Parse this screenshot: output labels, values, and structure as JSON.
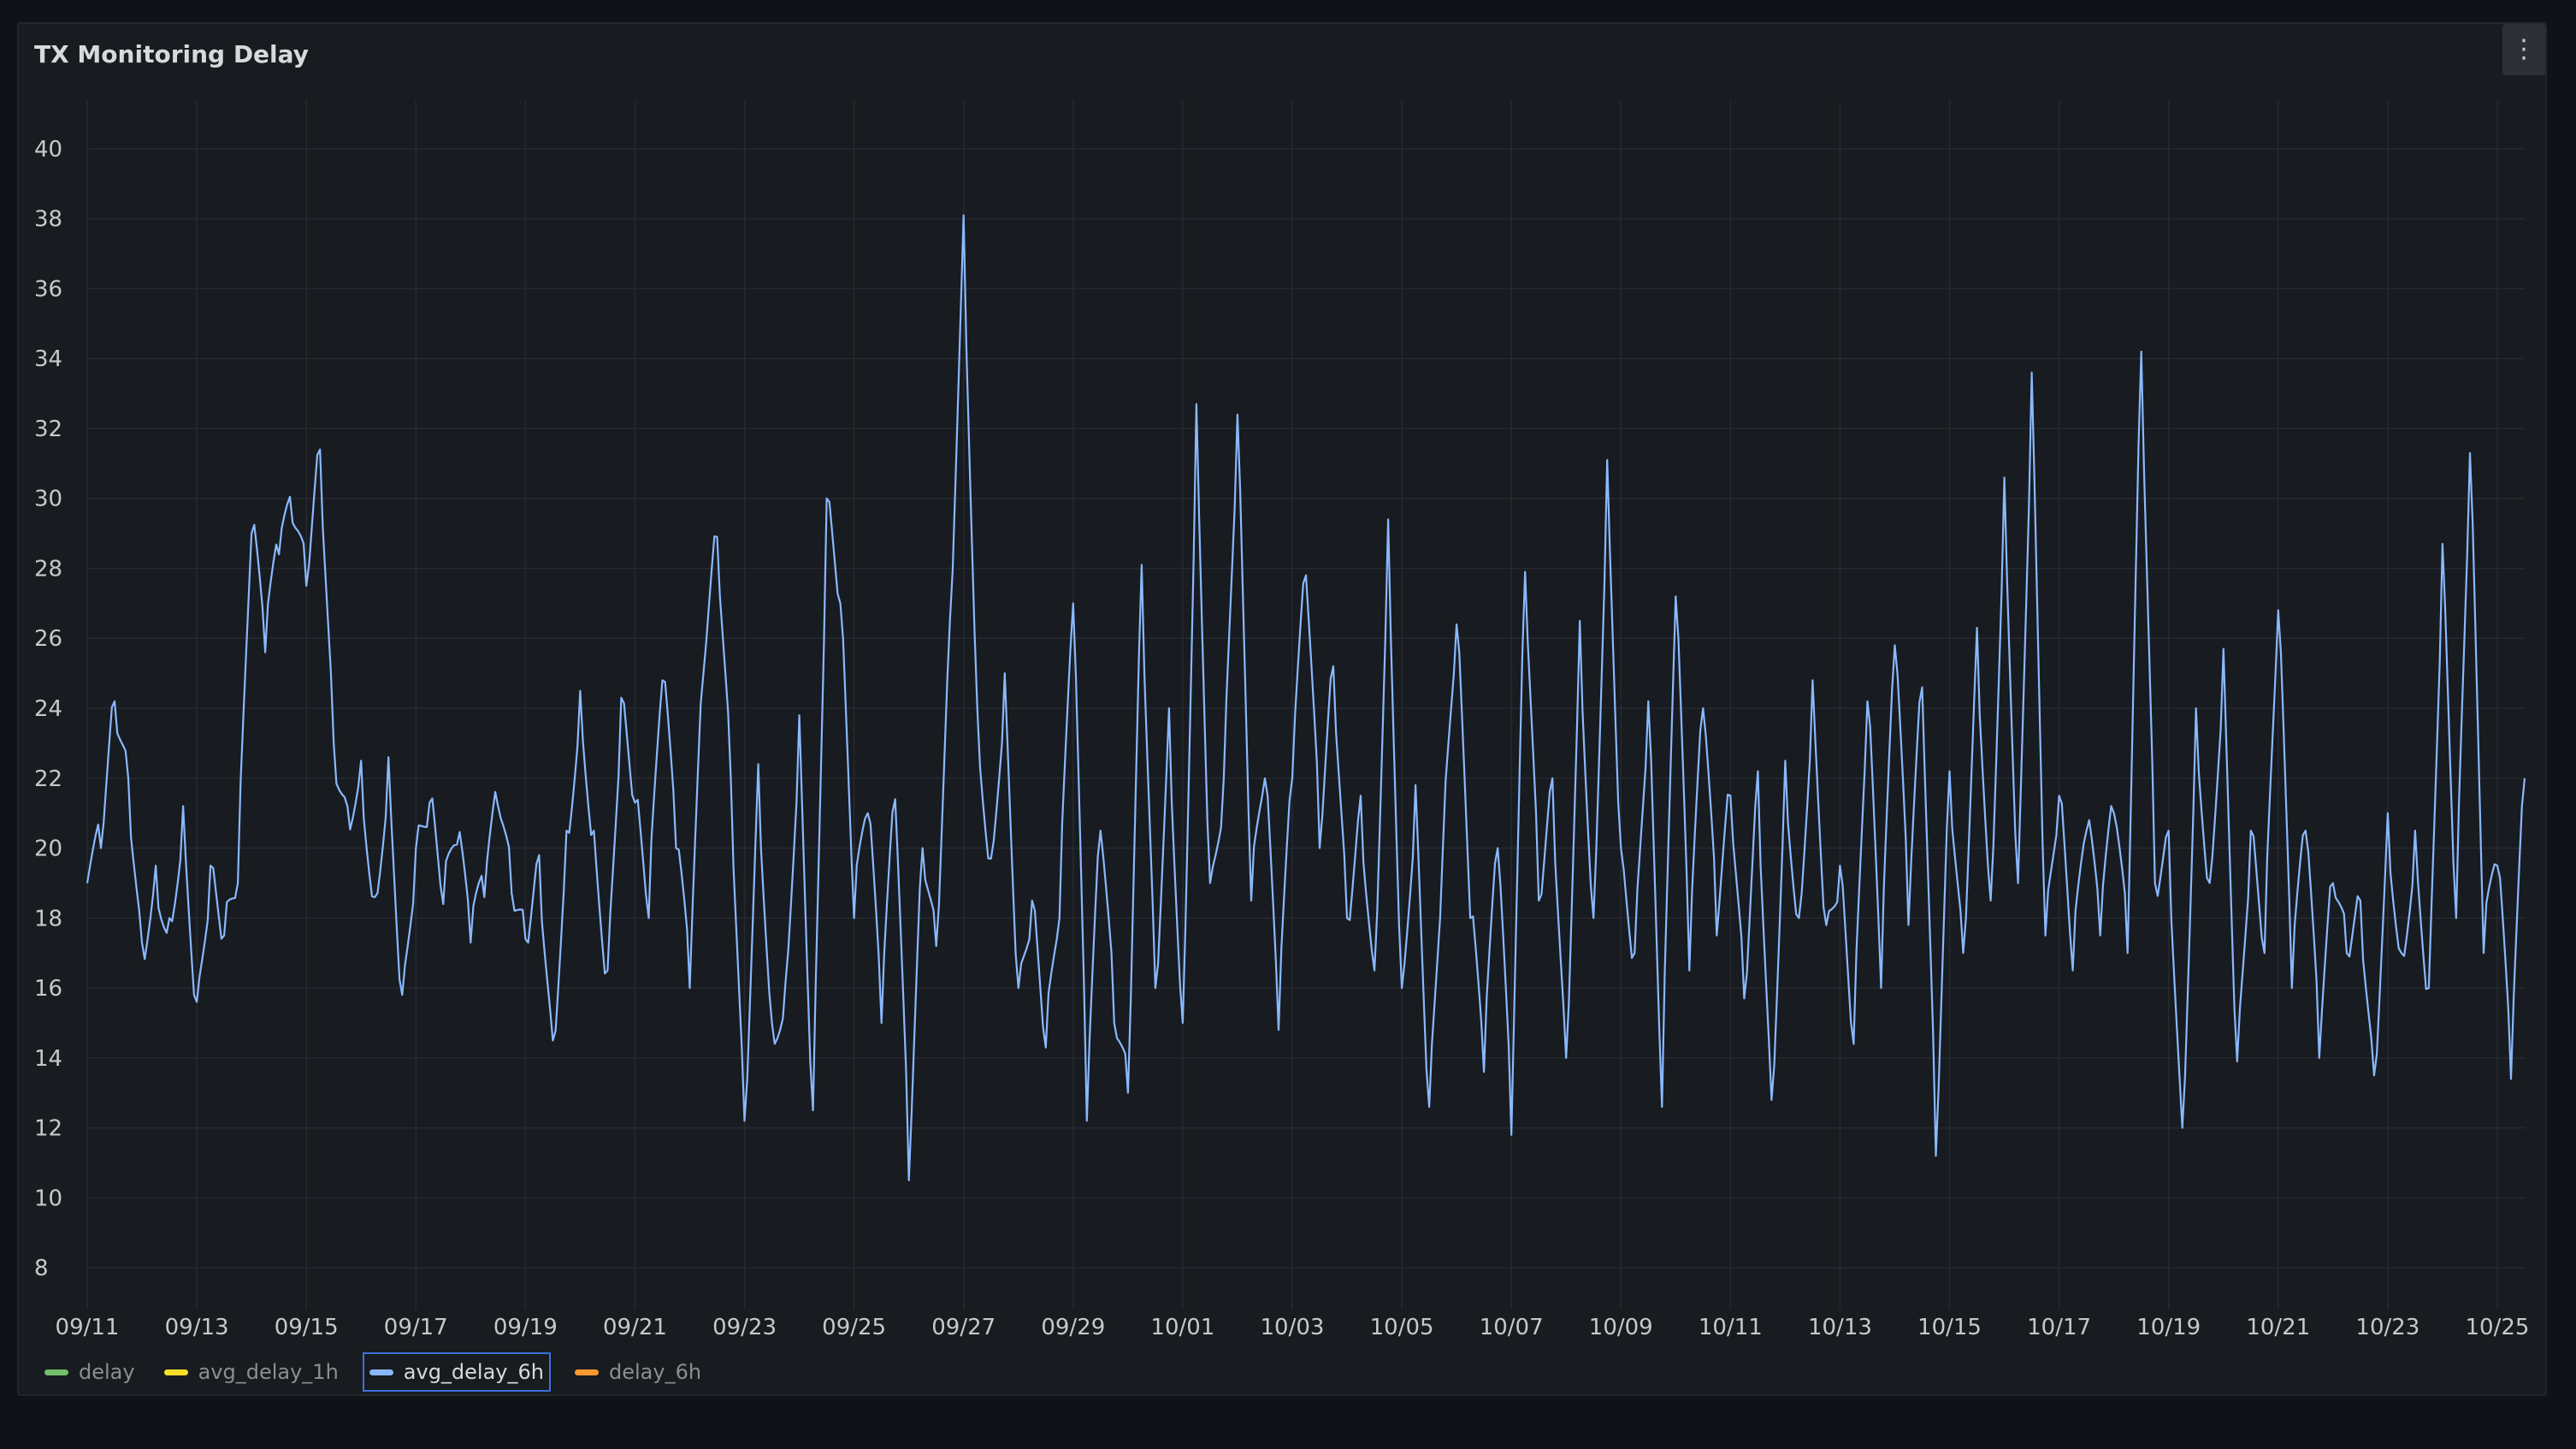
{
  "panel": {
    "title": "TX Monitoring Delay",
    "menu_icon": "vertical-dots-icon"
  },
  "colors": {
    "background": "#111217",
    "panel": "#181b1f",
    "grid": "#262a30",
    "axis_text": "#c7c8ca",
    "series_line": "#8ab8ff"
  },
  "legend": [
    {
      "label": "delay",
      "color": "#73bf69",
      "active": false
    },
    {
      "label": "avg_delay_1h",
      "color": "#fade2a",
      "active": false
    },
    {
      "label": "avg_delay_6h",
      "color": "#8ab8ff",
      "active": true
    },
    {
      "label": "delay_6h",
      "color": "#ff9830",
      "active": false
    }
  ],
  "chart_data": {
    "type": "line",
    "title": "TX Monitoring Delay",
    "xlabel": "",
    "ylabel": "",
    "x_range": [
      "09/11",
      "10/25 12:00"
    ],
    "ylim": [
      7,
      41
    ],
    "y_ticks": [
      8,
      10,
      12,
      14,
      16,
      18,
      20,
      22,
      24,
      26,
      28,
      30,
      32,
      34,
      36,
      38,
      40
    ],
    "x_tick_labels": [
      "09/11",
      "09/13",
      "09/15",
      "09/17",
      "09/19",
      "09/21",
      "09/23",
      "09/25",
      "09/27",
      "09/29",
      "10/01",
      "10/03",
      "10/05",
      "10/07",
      "10/09",
      "10/11",
      "10/13",
      "10/15",
      "10/17",
      "10/19",
      "10/21",
      "10/23",
      "10/25"
    ],
    "grid": true,
    "legend_position": "bottom-left",
    "series": [
      {
        "name": "avg_delay_6h",
        "color": "#8ab8ff",
        "points": [
          [
            "09/11 00:00",
            19.0
          ],
          [
            "09/11 06:00",
            20.0
          ],
          [
            "09/11 12:00",
            24.2
          ],
          [
            "09/11 18:00",
            22.0
          ],
          [
            "09/12 00:00",
            17.3
          ],
          [
            "09/12 06:00",
            19.5
          ],
          [
            "09/12 12:00",
            18.0
          ],
          [
            "09/12 18:00",
            21.2
          ],
          [
            "09/13 00:00",
            15.6
          ],
          [
            "09/13 06:00",
            19.5
          ],
          [
            "09/13 12:00",
            17.5
          ],
          [
            "09/13 18:00",
            19.0
          ],
          [
            "09/14 00:00",
            29.0
          ],
          [
            "09/14 06:00",
            25.6
          ],
          [
            "09/14 12:00",
            28.4
          ],
          [
            "09/14 18:00",
            29.3
          ],
          [
            "09/15 00:00",
            27.5
          ],
          [
            "09/15 06:00",
            31.4
          ],
          [
            "09/15 12:00",
            23.0
          ],
          [
            "09/15 18:00",
            21.2
          ],
          [
            "09/16 00:00",
            22.5
          ],
          [
            "09/16 06:00",
            18.6
          ],
          [
            "09/16 12:00",
            22.6
          ],
          [
            "09/16 18:00",
            15.8
          ],
          [
            "09/17 00:00",
            20.0
          ],
          [
            "09/17 06:00",
            21.3
          ],
          [
            "09/17 12:00",
            18.4
          ],
          [
            "09/17 18:00",
            20.1
          ],
          [
            "09/18 00:00",
            17.3
          ],
          [
            "09/18 06:00",
            18.6
          ],
          [
            "09/18 12:00",
            21.2
          ],
          [
            "09/18 18:00",
            18.7
          ],
          [
            "09/19 00:00",
            17.4
          ],
          [
            "09/19 06:00",
            19.8
          ],
          [
            "09/19 12:00",
            14.5
          ],
          [
            "09/19 18:00",
            20.5
          ],
          [
            "09/20 00:00",
            24.5
          ],
          [
            "09/20 06:00",
            20.5
          ],
          [
            "09/20 12:00",
            16.5
          ],
          [
            "09/20 18:00",
            24.3
          ],
          [
            "09/21 00:00",
            21.3
          ],
          [
            "09/21 06:00",
            18.0
          ],
          [
            "09/21 12:00",
            24.8
          ],
          [
            "09/21 18:00",
            20.0
          ],
          [
            "09/22 00:00",
            16.0
          ],
          [
            "09/22 06:00",
            25.0
          ],
          [
            "09/22 12:00",
            28.9
          ],
          [
            "09/22 18:00",
            22.0
          ],
          [
            "09/23 00:00",
            12.2
          ],
          [
            "09/23 06:00",
            22.4
          ],
          [
            "09/23 12:00",
            15.0
          ],
          [
            "09/23 18:00",
            16.2
          ],
          [
            "09/24 00:00",
            23.8
          ],
          [
            "09/24 06:00",
            12.5
          ],
          [
            "09/24 12:00",
            30.0
          ],
          [
            "09/24 18:00",
            27.0
          ],
          [
            "09/25 00:00",
            18.0
          ],
          [
            "09/25 06:00",
            21.0
          ],
          [
            "09/25 12:00",
            15.0
          ],
          [
            "09/25 18:00",
            21.4
          ],
          [
            "09/26 00:00",
            10.5
          ],
          [
            "09/26 06:00",
            20.0
          ],
          [
            "09/26 12:00",
            17.2
          ],
          [
            "09/26 18:00",
            26.5
          ],
          [
            "09/27 00:00",
            38.1
          ],
          [
            "09/27 06:00",
            24.0
          ],
          [
            "09/27 12:00",
            19.7
          ],
          [
            "09/27 18:00",
            25.0
          ],
          [
            "09/28 00:00",
            16.0
          ],
          [
            "09/28 06:00",
            18.5
          ],
          [
            "09/28 12:00",
            14.3
          ],
          [
            "09/28 18:00",
            18.0
          ],
          [
            "09/29 00:00",
            27.0
          ],
          [
            "09/29 06:00",
            12.2
          ],
          [
            "09/29 12:00",
            20.5
          ],
          [
            "09/29 18:00",
            15.0
          ],
          [
            "09/30 00:00",
            13.0
          ],
          [
            "09/30 06:00",
            28.1
          ],
          [
            "09/30 12:00",
            16.0
          ],
          [
            "09/30 18:00",
            24.0
          ],
          [
            "10/01 00:00",
            15.0
          ],
          [
            "10/01 06:00",
            32.7
          ],
          [
            "10/01 12:00",
            19.0
          ],
          [
            "10/01 18:00",
            22.0
          ],
          [
            "10/02 00:00",
            32.4
          ],
          [
            "10/02 06:00",
            18.5
          ],
          [
            "10/02 12:00",
            22.0
          ],
          [
            "10/02 18:00",
            14.8
          ],
          [
            "10/03 00:00",
            22.0
          ],
          [
            "10/03 06:00",
            27.8
          ],
          [
            "10/03 12:00",
            20.0
          ],
          [
            "10/03 18:00",
            25.2
          ],
          [
            "10/04 00:00",
            18.0
          ],
          [
            "10/04 06:00",
            21.5
          ],
          [
            "10/04 12:00",
            16.5
          ],
          [
            "10/04 18:00",
            29.4
          ],
          [
            "10/05 00:00",
            16.0
          ],
          [
            "10/05 06:00",
            21.8
          ],
          [
            "10/05 12:00",
            12.6
          ],
          [
            "10/05 18:00",
            20.0
          ],
          [
            "10/06 00:00",
            26.4
          ],
          [
            "10/06 06:00",
            18.0
          ],
          [
            "10/06 12:00",
            13.6
          ],
          [
            "10/06 18:00",
            20.0
          ],
          [
            "10/07 00:00",
            11.8
          ],
          [
            "10/07 06:00",
            27.9
          ],
          [
            "10/07 12:00",
            18.5
          ],
          [
            "10/07 18:00",
            22.0
          ],
          [
            "10/08 00:00",
            14.0
          ],
          [
            "10/08 06:00",
            26.5
          ],
          [
            "10/08 12:00",
            18.0
          ],
          [
            "10/08 18:00",
            31.1
          ],
          [
            "10/09 00:00",
            20.0
          ],
          [
            "10/09 06:00",
            17.0
          ],
          [
            "10/09 12:00",
            24.2
          ],
          [
            "10/09 18:00",
            12.6
          ],
          [
            "10/10 00:00",
            27.2
          ],
          [
            "10/10 06:00",
            16.5
          ],
          [
            "10/10 12:00",
            24.0
          ],
          [
            "10/10 18:00",
            17.5
          ],
          [
            "10/11 00:00",
            21.5
          ],
          [
            "10/11 06:00",
            15.7
          ],
          [
            "10/11 12:00",
            22.2
          ],
          [
            "10/11 18:00",
            12.8
          ],
          [
            "10/12 00:00",
            22.5
          ],
          [
            "10/12 06:00",
            18.0
          ],
          [
            "10/12 12:00",
            24.8
          ],
          [
            "10/12 18:00",
            17.8
          ],
          [
            "10/13 00:00",
            19.5
          ],
          [
            "10/13 06:00",
            14.4
          ],
          [
            "10/13 12:00",
            24.2
          ],
          [
            "10/13 18:00",
            16.0
          ],
          [
            "10/14 00:00",
            25.8
          ],
          [
            "10/14 06:00",
            17.8
          ],
          [
            "10/14 12:00",
            24.6
          ],
          [
            "10/14 18:00",
            11.2
          ],
          [
            "10/15 00:00",
            22.2
          ],
          [
            "10/15 06:00",
            17.0
          ],
          [
            "10/15 12:00",
            26.3
          ],
          [
            "10/15 18:00",
            18.5
          ],
          [
            "10/16 00:00",
            30.6
          ],
          [
            "10/16 06:00",
            19.0
          ],
          [
            "10/16 12:00",
            33.6
          ],
          [
            "10/16 18:00",
            17.5
          ],
          [
            "10/17 00:00",
            21.5
          ],
          [
            "10/17 06:00",
            16.5
          ],
          [
            "10/17 12:00",
            20.5
          ],
          [
            "10/17 18:00",
            17.5
          ],
          [
            "10/18 00:00",
            21.0
          ],
          [
            "10/18 06:00",
            17.0
          ],
          [
            "10/18 12:00",
            34.2
          ],
          [
            "10/18 18:00",
            19.0
          ],
          [
            "10/19 00:00",
            20.5
          ],
          [
            "10/19 06:00",
            12.0
          ],
          [
            "10/19 12:00",
            24.0
          ],
          [
            "10/19 18:00",
            19.0
          ],
          [
            "10/20 00:00",
            25.7
          ],
          [
            "10/20 06:00",
            13.9
          ],
          [
            "10/20 12:00",
            20.5
          ],
          [
            "10/20 18:00",
            17.0
          ],
          [
            "10/21 00:00",
            26.8
          ],
          [
            "10/21 06:00",
            16.0
          ],
          [
            "10/21 12:00",
            20.5
          ],
          [
            "10/21 18:00",
            14.0
          ],
          [
            "10/22 00:00",
            19.0
          ],
          [
            "10/22 06:00",
            17.0
          ],
          [
            "10/22 12:00",
            18.5
          ],
          [
            "10/22 18:00",
            13.5
          ],
          [
            "10/23 00:00",
            21.0
          ],
          [
            "10/23 06:00",
            17.0
          ],
          [
            "10/23 12:00",
            20.5
          ],
          [
            "10/23 18:00",
            16.0
          ],
          [
            "10/24 00:00",
            28.7
          ],
          [
            "10/24 06:00",
            18.0
          ],
          [
            "10/24 12:00",
            31.3
          ],
          [
            "10/24 18:00",
            17.0
          ],
          [
            "10/25 00:00",
            19.5
          ],
          [
            "10/25 06:00",
            13.4
          ],
          [
            "10/25 12:00",
            22.0
          ]
        ]
      },
      {
        "name": "delay",
        "color": "#73bf69",
        "hidden": true
      },
      {
        "name": "avg_delay_1h",
        "color": "#fade2a",
        "hidden": true
      },
      {
        "name": "delay_6h",
        "color": "#ff9830",
        "hidden": true
      }
    ]
  }
}
